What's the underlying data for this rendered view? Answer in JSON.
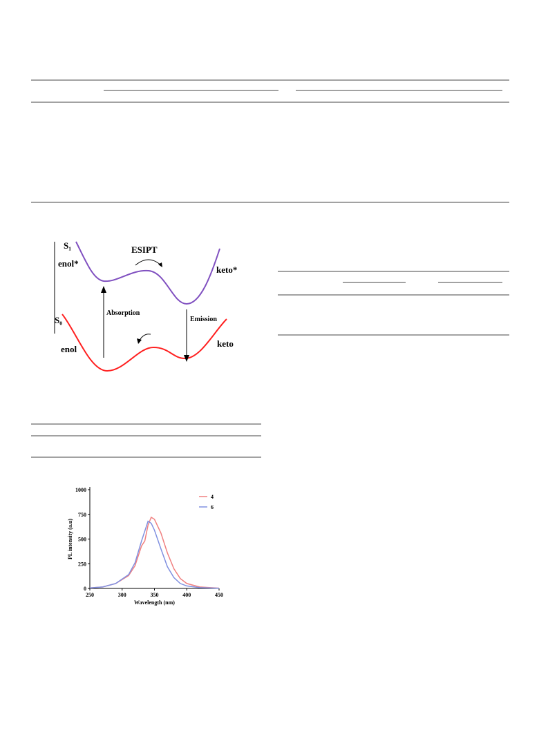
{
  "diagram": {
    "s1": "S₁",
    "enol_star": "enol*",
    "esipt": "ESIPT",
    "keto_star": "keto*",
    "s0": "S₀",
    "absorption": "Absorption",
    "emission": "Emission",
    "enol": "enol",
    "keto": "keto"
  },
  "chart_data": {
    "type": "line",
    "x_label": "Wavelength (nm)",
    "y_label": "PL intensity (a.u)",
    "x": [
      250,
      270,
      290,
      310,
      320,
      330,
      335,
      340,
      345,
      350,
      360,
      370,
      380,
      390,
      400,
      420,
      450
    ],
    "series": [
      {
        "name": "4",
        "color": "#f08080",
        "values": [
          5,
          15,
          50,
          130,
          230,
          430,
          480,
          640,
          720,
          700,
          560,
          360,
          200,
          100,
          50,
          15,
          3
        ]
      },
      {
        "name": "6",
        "color": "#8090e0",
        "values": [
          5,
          15,
          50,
          140,
          260,
          480,
          580,
          680,
          660,
          590,
          400,
          220,
          110,
          50,
          25,
          8,
          2
        ]
      }
    ],
    "xlim": [
      250,
      450
    ],
    "ylim": [
      0,
      1000
    ],
    "xticks": [
      250,
      300,
      350,
      400,
      450
    ],
    "yticks": [
      0,
      250,
      500,
      750,
      1000
    ]
  }
}
